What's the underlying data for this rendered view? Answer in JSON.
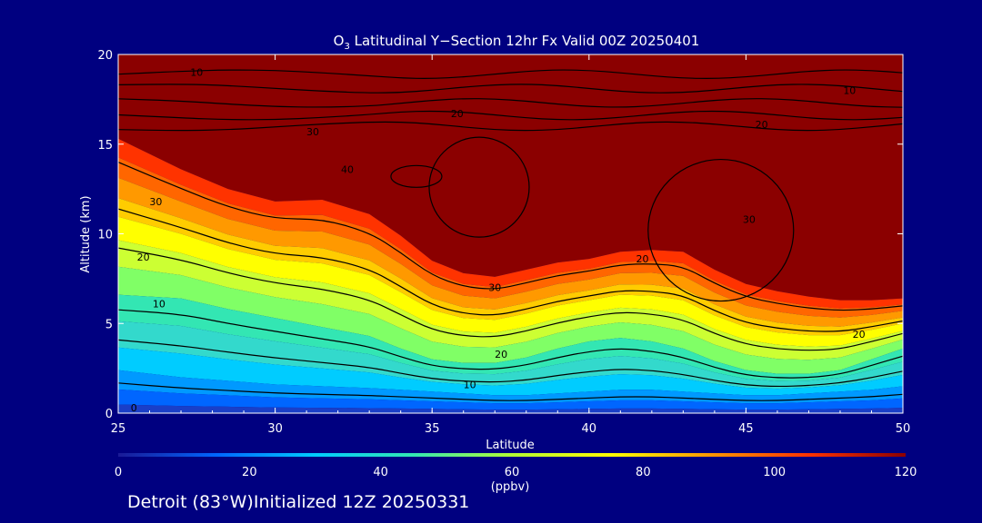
{
  "chart_data": {
    "type": "heatmap",
    "title_parts": [
      "O",
      "3",
      " Latitudinal Y−Section 12hr  Fx Valid 00Z 20250401"
    ],
    "xlabel": "Latitude",
    "ylabel": "Altitude (km)",
    "xlim": [
      25,
      50
    ],
    "ylim": [
      0,
      20
    ],
    "x_ticks": [
      25,
      30,
      35,
      40,
      45,
      50
    ],
    "y_ticks": [
      0,
      5,
      10,
      15,
      20
    ],
    "colorbar": {
      "min": 0,
      "max": 120,
      "ticks": [
        0,
        20,
        40,
        60,
        80,
        100,
        120
      ],
      "unit": "(ppbv)",
      "colors": [
        "#1a1a96",
        "#0066ff",
        "#00ccff",
        "#33e6b3",
        "#b3ff33",
        "#ffff00",
        "#ff9900",
        "#ff3300",
        "#8b0000"
      ]
    },
    "ozone_boundary_km": {
      "lat": [
        25,
        27,
        28.5,
        30,
        31.5,
        33,
        34,
        35,
        36,
        37,
        38,
        39,
        40,
        41,
        42,
        43,
        44,
        45,
        46,
        47,
        48,
        49,
        50
      ],
      "alt_120": [
        15.3,
        13.6,
        12.5,
        11.8,
        11.9,
        11.1,
        9.9,
        8.5,
        7.8,
        7.6,
        8.0,
        8.4,
        8.6,
        9.0,
        9.1,
        9.0,
        8.0,
        7.2,
        6.8,
        6.5,
        6.3,
        6.3,
        6.4
      ],
      "alt_60": [
        6.6,
        6.4,
        5.8,
        5.3,
        4.8,
        4.3,
        3.6,
        3.0,
        2.8,
        2.8,
        3.1,
        3.6,
        4.0,
        4.2,
        4.0,
        3.6,
        2.9,
        2.4,
        2.2,
        2.2,
        2.4,
        3.0,
        3.6
      ],
      "alt_40": [
        2.4,
        2.0,
        1.8,
        1.6,
        1.5,
        1.4,
        1.3,
        1.2,
        1.1,
        1.0,
        1.0,
        1.1,
        1.2,
        1.3,
        1.3,
        1.2,
        1.1,
        1.0,
        1.0,
        1.1,
        1.2,
        1.3,
        1.5
      ]
    },
    "contour_labels": [
      {
        "text": "10",
        "lat": 27.5,
        "alt": 18.8
      },
      {
        "text": "20",
        "lat": 35.8,
        "alt": 16.5
      },
      {
        "text": "30",
        "lat": 31.2,
        "alt": 15.5
      },
      {
        "text": "40",
        "lat": 32.3,
        "alt": 13.4
      },
      {
        "text": "10",
        "lat": 48.3,
        "alt": 17.8
      },
      {
        "text": "20",
        "lat": 45.5,
        "alt": 15.9
      },
      {
        "text": "30",
        "lat": 26.2,
        "alt": 11.6
      },
      {
        "text": "20",
        "lat": 25.8,
        "alt": 8.5
      },
      {
        "text": "10",
        "lat": 26.3,
        "alt": 5.9
      },
      {
        "text": "30",
        "lat": 37.0,
        "alt": 6.8
      },
      {
        "text": "20",
        "lat": 37.2,
        "alt": 3.1
      },
      {
        "text": "10",
        "lat": 36.2,
        "alt": 1.4
      },
      {
        "text": "20",
        "lat": 41.7,
        "alt": 8.4
      },
      {
        "text": "30",
        "lat": 45.1,
        "alt": 10.6
      },
      {
        "text": "20",
        "lat": 48.6,
        "alt": 4.2
      },
      {
        "text": "0",
        "lat": 25.5,
        "alt": 0.1
      }
    ]
  },
  "footer": "Detroit (83°W)Initialized 12Z 20250331"
}
